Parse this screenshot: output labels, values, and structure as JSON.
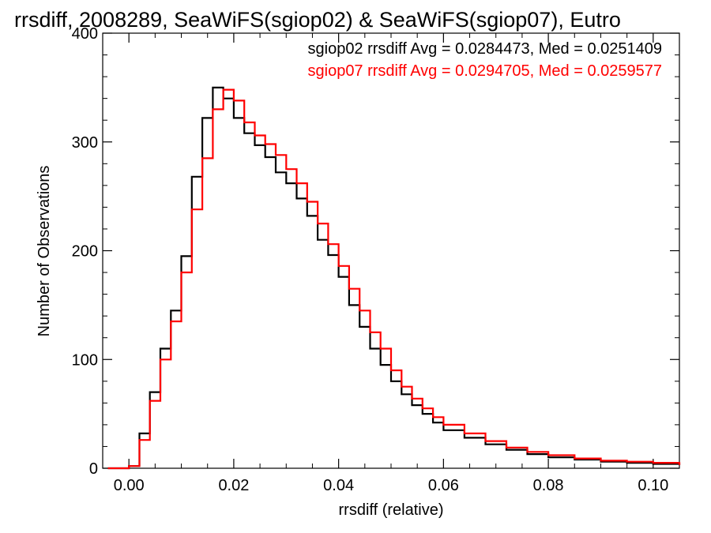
{
  "chart_data": {
    "type": "line",
    "title": "rrsdiff, 2008289, SeaWiFS(sgiop02) & SeaWiFS(sgiop07), Eutro",
    "xlabel": "rrsdiff (relative)",
    "ylabel": "Number of Observations",
    "xlim": [
      -0.005,
      0.105
    ],
    "ylim": [
      0,
      400
    ],
    "x_ticks": [
      0.0,
      0.02,
      0.04,
      0.06,
      0.08,
      0.1
    ],
    "x_tick_labels": [
      "0.00",
      "0.02",
      "0.04",
      "0.06",
      "0.08",
      "0.10"
    ],
    "y_ticks": [
      0,
      100,
      200,
      300,
      400
    ],
    "y_tick_labels": [
      "0",
      "100",
      "200",
      "300",
      "400"
    ],
    "grid": false,
    "legend_position": "top-right",
    "step_style": "histogram",
    "series": [
      {
        "name": "sgiop02",
        "color": "#000000",
        "annotation": "sgiop02 rrsdiff Avg = 0.0284473, Med = 0.0251409",
        "x": [
          -0.004,
          0.0,
          0.002,
          0.004,
          0.006,
          0.008,
          0.01,
          0.012,
          0.014,
          0.016,
          0.018,
          0.02,
          0.022,
          0.024,
          0.026,
          0.028,
          0.03,
          0.032,
          0.034,
          0.036,
          0.038,
          0.04,
          0.042,
          0.044,
          0.046,
          0.048,
          0.05,
          0.052,
          0.054,
          0.056,
          0.058,
          0.06,
          0.064,
          0.068,
          0.072,
          0.076,
          0.08,
          0.085,
          0.09,
          0.095,
          0.1,
          0.105
        ],
        "y": [
          0,
          2,
          32,
          70,
          110,
          145,
          195,
          268,
          322,
          350,
          340,
          322,
          308,
          297,
          286,
          272,
          262,
          248,
          232,
          210,
          196,
          176,
          150,
          130,
          110,
          95,
          80,
          68,
          58,
          50,
          42,
          35,
          28,
          22,
          17,
          13,
          10,
          8,
          6,
          5,
          4,
          3
        ]
      },
      {
        "name": "sgiop07",
        "color": "#ff0000",
        "annotation": "sgiop07 rrsdiff Avg = 0.0294705, Med = 0.0259577",
        "x": [
          -0.004,
          0.0,
          0.002,
          0.004,
          0.006,
          0.008,
          0.01,
          0.012,
          0.014,
          0.016,
          0.018,
          0.02,
          0.022,
          0.024,
          0.026,
          0.028,
          0.03,
          0.032,
          0.034,
          0.036,
          0.038,
          0.04,
          0.042,
          0.044,
          0.046,
          0.048,
          0.05,
          0.052,
          0.054,
          0.056,
          0.058,
          0.06,
          0.064,
          0.068,
          0.072,
          0.076,
          0.08,
          0.085,
          0.09,
          0.095,
          0.1,
          0.105
        ],
        "y": [
          0,
          2,
          26,
          62,
          100,
          135,
          180,
          238,
          285,
          330,
          348,
          338,
          318,
          306,
          298,
          288,
          275,
          262,
          245,
          225,
          206,
          186,
          165,
          145,
          125,
          110,
          90,
          75,
          64,
          55,
          47,
          40,
          32,
          25,
          19,
          15,
          12,
          9,
          7,
          6,
          5,
          3
        ]
      }
    ]
  }
}
